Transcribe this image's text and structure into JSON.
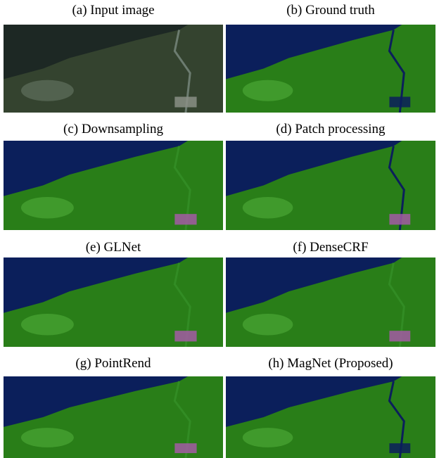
{
  "figure": {
    "panels": [
      {
        "caption": "(a) Input image"
      },
      {
        "caption": "(b) Ground truth"
      },
      {
        "caption": "(c) Downsampling"
      },
      {
        "caption": "(d) Patch processing"
      },
      {
        "caption": "(e) GLNet"
      },
      {
        "caption": "(f) DenseCRF"
      },
      {
        "caption": "(g) PointRend"
      },
      {
        "caption": "(h) MagNet (Proposed)"
      }
    ]
  }
}
